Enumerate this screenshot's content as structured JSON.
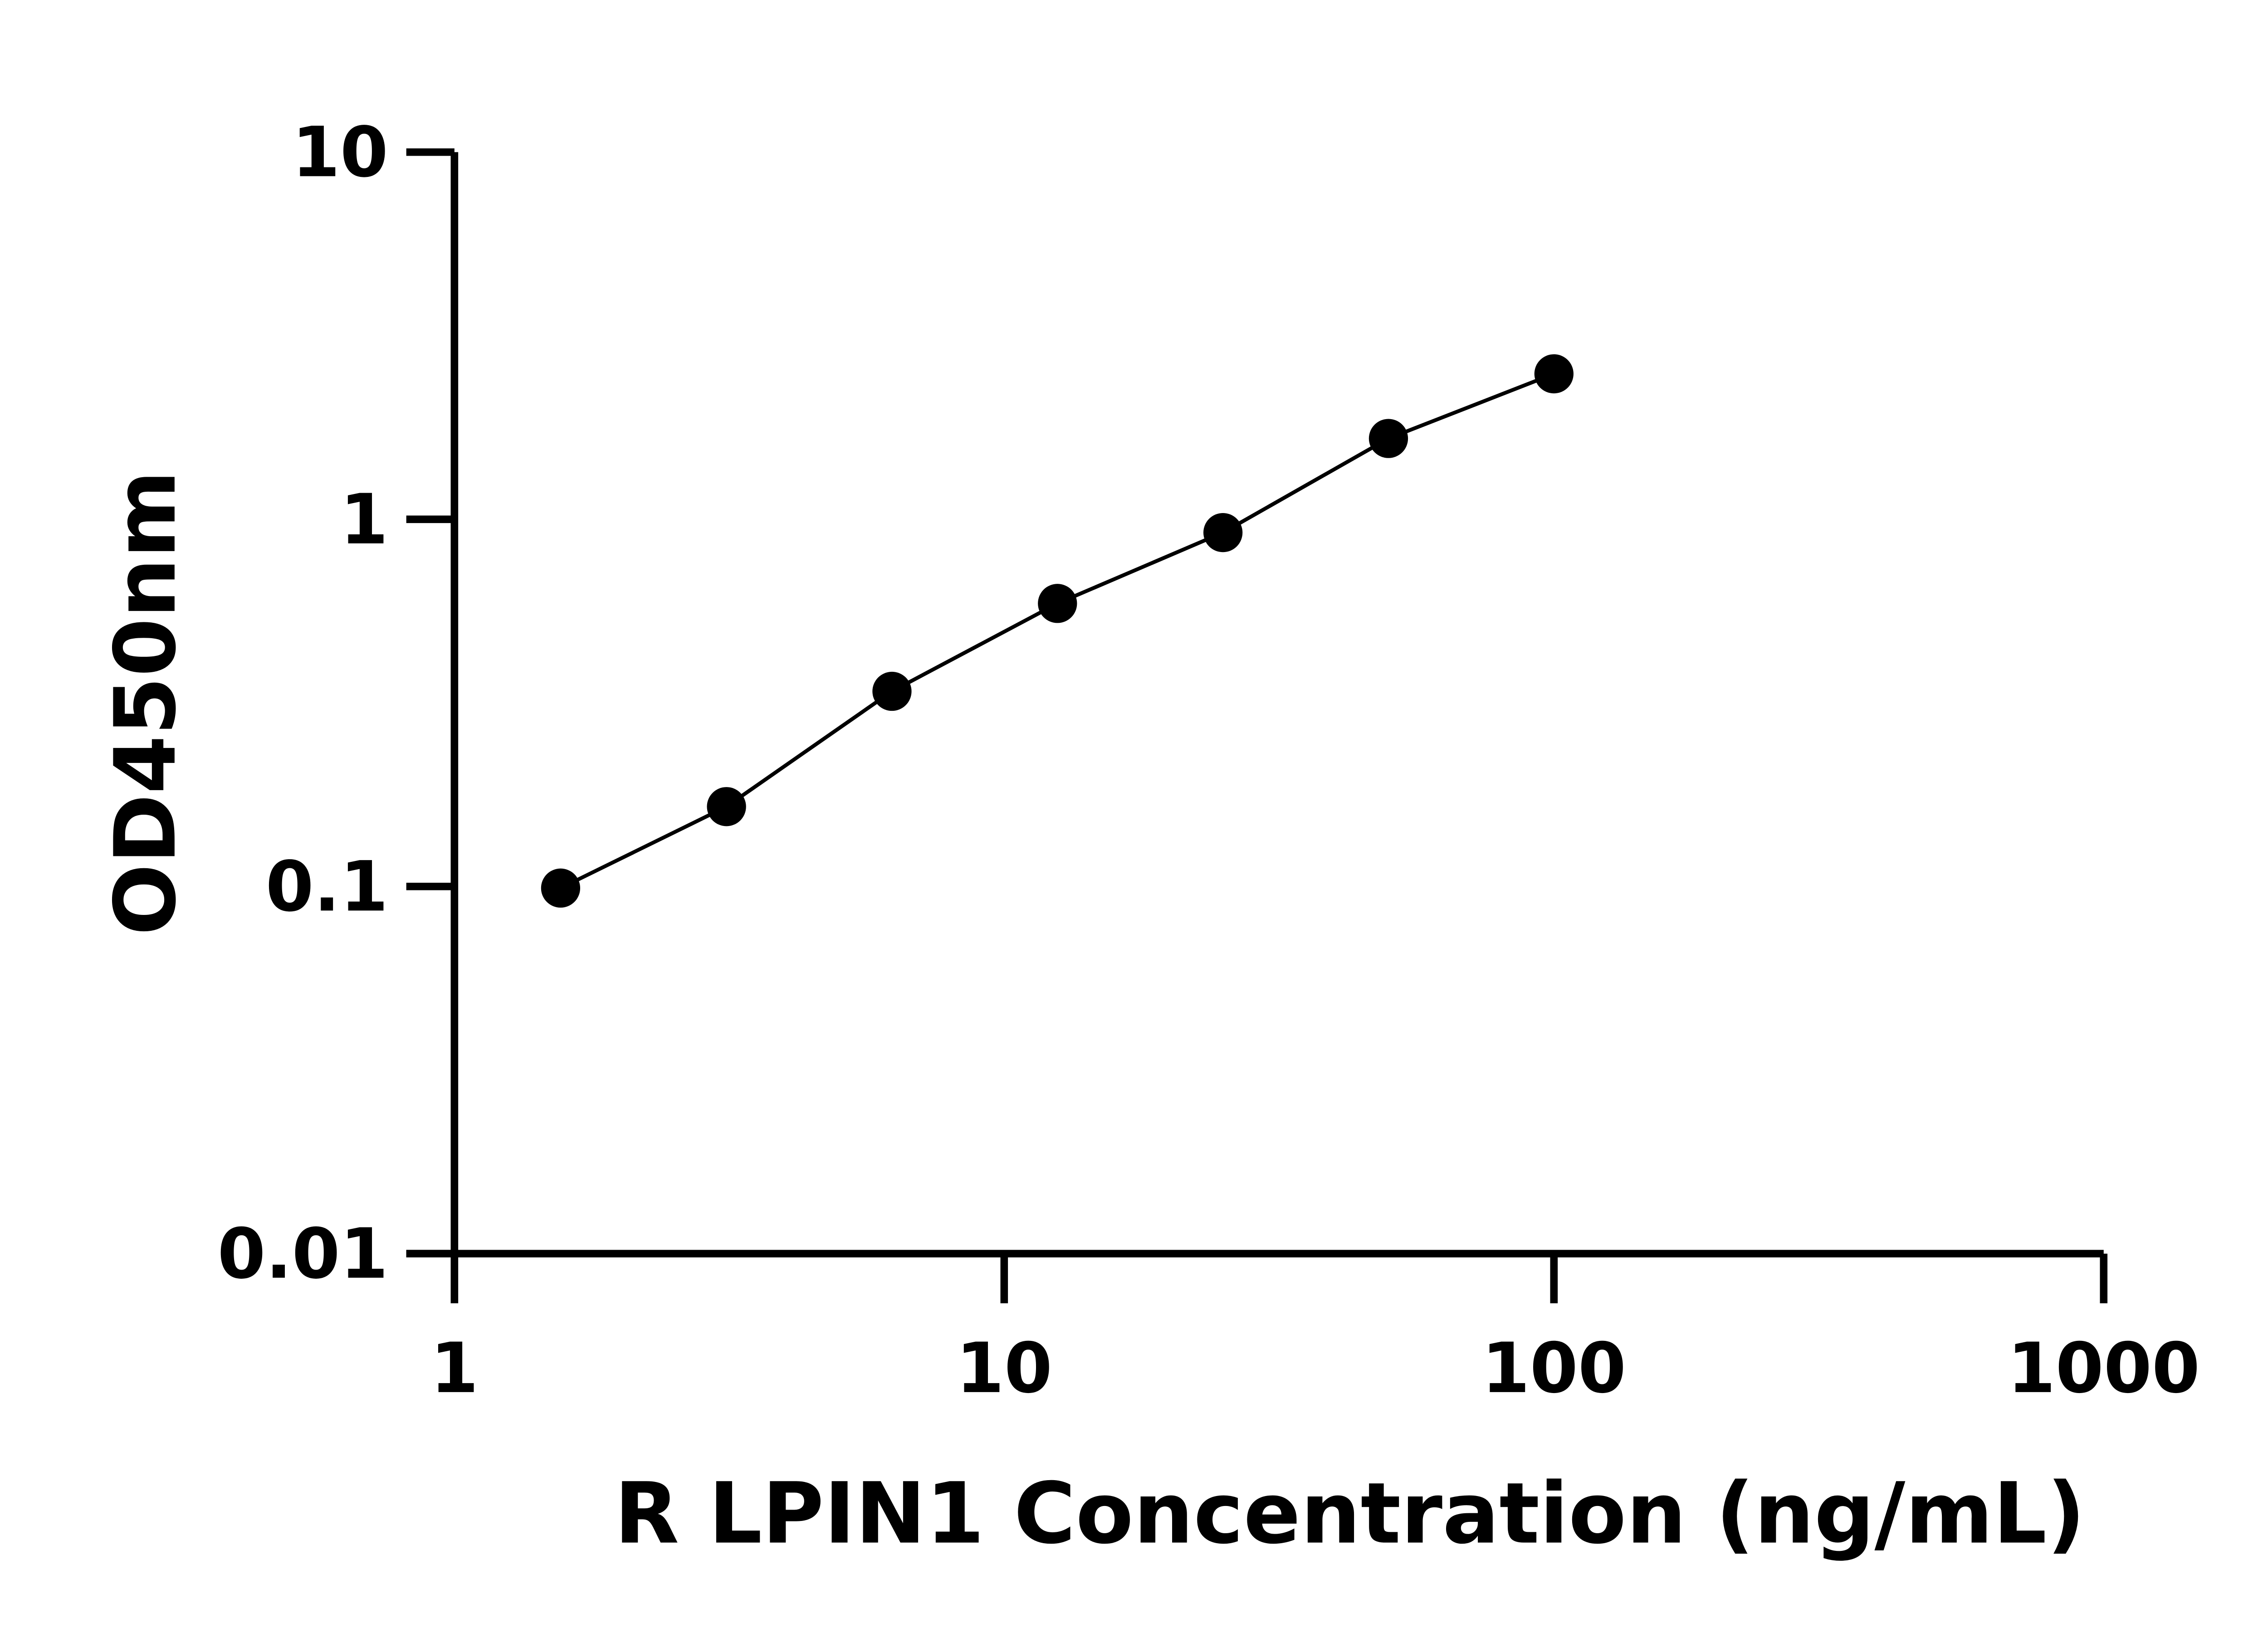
{
  "chart_data": {
    "type": "line",
    "title": "",
    "xlabel": "R LPIN1 Concentration (ng/mL)",
    "ylabel": "OD450nm",
    "x_scale": "log",
    "y_scale": "log",
    "xlim": [
      1,
      1000
    ],
    "ylim": [
      0.01,
      10
    ],
    "x_ticks": [
      "1",
      "10",
      "100",
      "1000"
    ],
    "y_ticks": [
      "0.01",
      "0.1",
      "1",
      "10"
    ],
    "grid": false,
    "legend": "none",
    "marker": "filled-circle",
    "color": "#000000",
    "series": [
      {
        "x": [
          1.56,
          3.125,
          6.25,
          12.5,
          25,
          50,
          100
        ],
        "y": [
          0.099,
          0.165,
          0.34,
          0.59,
          0.92,
          1.66,
          2.49
        ]
      }
    ]
  }
}
